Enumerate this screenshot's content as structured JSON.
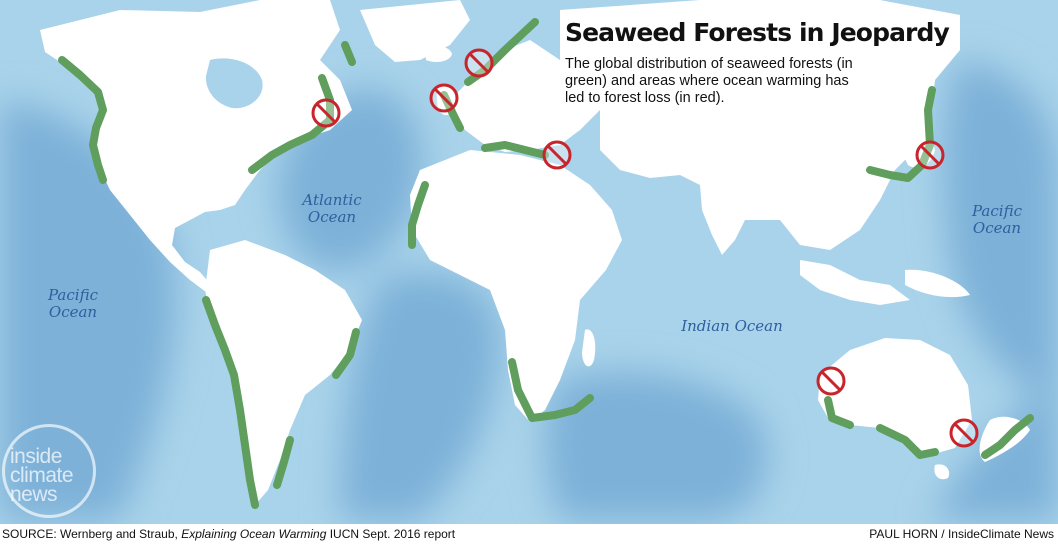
{
  "map": {
    "title": "Seaweed Forests in Jeopardy",
    "subtitle": "The global distribution of seaweed forests (in green) and areas where ocean warming has led to forest loss (in red).",
    "ocean_labels": {
      "atlantic_line1": "Atlantic",
      "atlantic_line2": "Ocean",
      "pacific_west_line1": "Pacific",
      "pacific_west_line2": "Ocean",
      "pacific_east_line1": "Pacific",
      "pacific_east_line2": "Ocean",
      "indian": "Indian Ocean"
    },
    "colors": {
      "ocean": "#a9d3ea",
      "warm_water": "#7db1d8",
      "land": "#ffffff",
      "seaweed": "#5f9e5c",
      "loss_marker": "#c8242b"
    },
    "loss_marker_icon": "no-symbol-icon",
    "loss_areas": [
      "Nova Scotia",
      "English Channel",
      "Norway",
      "Eastern Mediterranean",
      "Japan",
      "Western Australia",
      "Tasmania"
    ]
  },
  "footer": {
    "source_prefix": "SOURCE: Wernberg and Straub, ",
    "source_title": "Explaining Ocean Warming",
    "source_suffix": " IUCN Sept. 2016 report",
    "credit": "PAUL HORN / InsideClimate News"
  },
  "logo": {
    "line1": "inside",
    "line2": "climate",
    "line3": "news"
  }
}
